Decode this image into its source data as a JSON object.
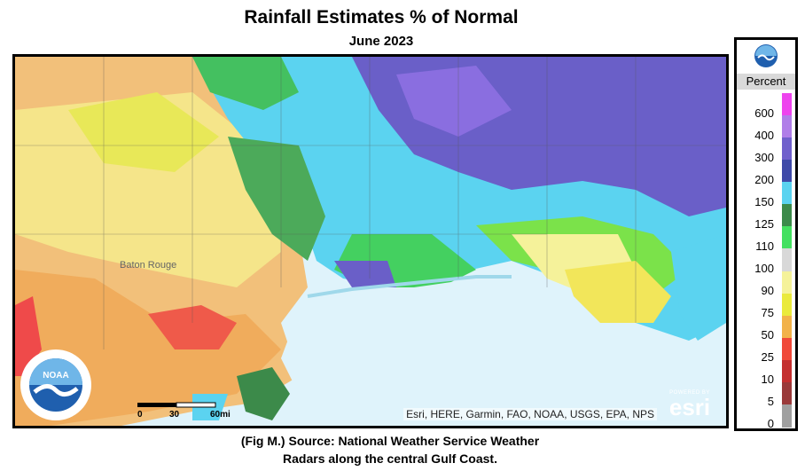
{
  "header": {
    "title": "Rainfall Estimates % of Normal",
    "subtitle": "June 2023"
  },
  "map": {
    "attribution": "Esri, HERE, Garmin, FAO, NOAA, USGS, EPA, NPS",
    "esri_powered": "POWERED BY",
    "esri_name": "esri",
    "scale": {
      "labels": [
        "0",
        "30",
        "60mi"
      ]
    },
    "place_labels": [
      "Baton Rouge"
    ],
    "noaa_badge_icon": "noaa-seal-icon"
  },
  "legend": {
    "logo_icon": "noaa-logo-icon",
    "header": "Percent",
    "classes": [
      {
        "label": "600",
        "color": "#ee44ee"
      },
      {
        "label": "400",
        "color": "#b07ee8"
      },
      {
        "label": "300",
        "color": "#7060cc"
      },
      {
        "label": "200",
        "color": "#3f4aa8"
      },
      {
        "label": "150",
        "color": "#5bd3f0"
      },
      {
        "label": "125",
        "color": "#3c8a4a"
      },
      {
        "label": "110",
        "color": "#44e060"
      },
      {
        "label": "100",
        "color": "#d8d8d8"
      },
      {
        "label": "90",
        "color": "#f5f29a"
      },
      {
        "label": "75",
        "color": "#eaea3c"
      },
      {
        "label": "50",
        "color": "#f2b24a"
      },
      {
        "label": "25",
        "color": "#f04a3a"
      },
      {
        "label": "10",
        "color": "#c43030"
      },
      {
        "label": "5",
        "color": "#9a3a3a"
      },
      {
        "label": "0",
        "color": "#a0a0a0"
      }
    ]
  },
  "caption": {
    "line1": "(Fig M.) Source: National Weather Service Weather",
    "line2": "Radars along the central Gulf Coast."
  }
}
